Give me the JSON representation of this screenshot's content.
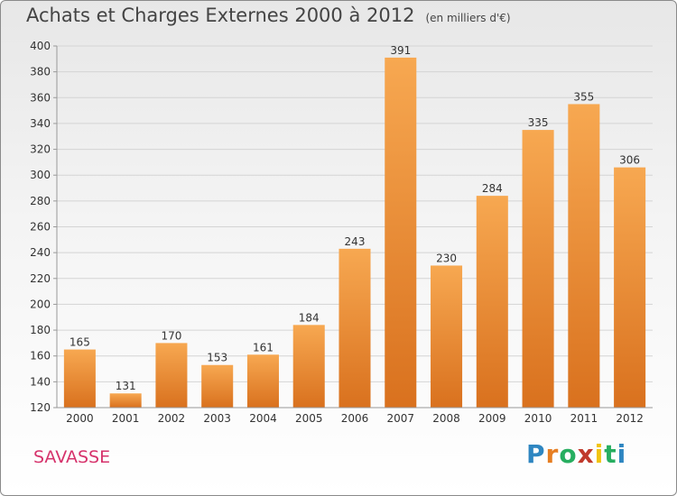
{
  "title": "Achats et Charges Externes 2000 à 2012",
  "subtitle": "(en milliers d'€)",
  "location": "SAVASSE",
  "logo": {
    "text": "Proxiti",
    "letters": [
      "P",
      "r",
      "o",
      "x",
      "i",
      "t",
      "i"
    ],
    "letter_colors": [
      "#2e86c1",
      "#e67e22",
      "#27ae60",
      "#c0392b",
      "#f1c40f",
      "#27ae60",
      "#2e86c1"
    ]
  },
  "colors": {
    "bar_top": "#f7a851",
    "bar_bottom": "#d9711e",
    "grid": "#d4d4d4",
    "title": "#444444",
    "location": "#d6336c"
  },
  "chart_data": {
    "type": "bar",
    "title": "Achats et Charges Externes 2000 à 2012",
    "subtitle": "(en milliers d'€)",
    "categories": [
      "2000",
      "2001",
      "2002",
      "2003",
      "2004",
      "2005",
      "2006",
      "2007",
      "2008",
      "2009",
      "2010",
      "2011",
      "2012"
    ],
    "values": [
      165,
      131,
      170,
      153,
      161,
      184,
      243,
      391,
      230,
      284,
      335,
      355,
      306
    ],
    "ylim": [
      120,
      400
    ],
    "yticks": [
      120,
      140,
      160,
      180,
      200,
      220,
      240,
      260,
      280,
      300,
      320,
      340,
      360,
      380,
      400
    ],
    "grid": true,
    "legend": "none",
    "xlabel": "",
    "ylabel": ""
  }
}
